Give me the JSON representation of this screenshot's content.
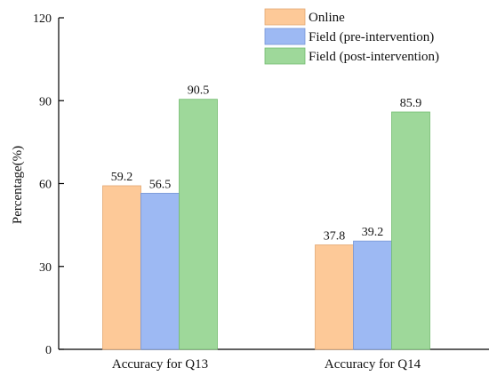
{
  "chart_data": {
    "type": "bar",
    "title": "",
    "xlabel": "",
    "ylabel": "Percentage(%)",
    "ylim": [
      0,
      120
    ],
    "yticks": [
      0,
      30,
      60,
      90,
      120
    ],
    "grid": false,
    "legend_position": "top-right",
    "categories": [
      "Accuracy for Q13",
      "Accuracy for Q14"
    ],
    "series": [
      {
        "name": "Online",
        "values": [
          59.2,
          37.8
        ],
        "color": "#FDC998",
        "edge": "#E3A874"
      },
      {
        "name": "Field (pre-intervention)",
        "values": [
          56.5,
          39.2
        ],
        "color": "#9DB9F3",
        "edge": "#7896D6"
      },
      {
        "name": "Field (post-intervention)",
        "values": [
          90.5,
          85.9
        ],
        "color": "#9ED89A",
        "edge": "#73BC70"
      }
    ],
    "data_labels": [
      [
        "59.2",
        "37.8"
      ],
      [
        "56.5",
        "39.2"
      ],
      [
        "90.5",
        "85.9"
      ]
    ]
  }
}
